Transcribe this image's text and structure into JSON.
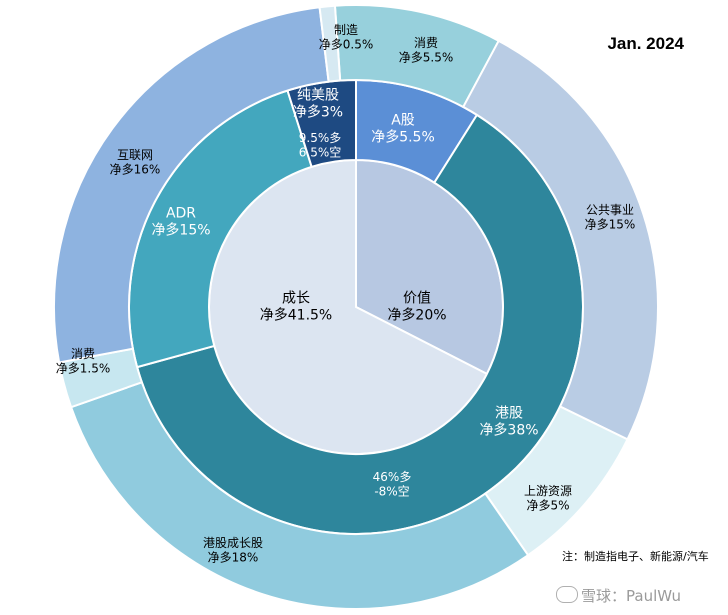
{
  "date": "Jan. 2024",
  "note": "注：制造指电子、新能源/汽车",
  "watermark": "雪球：PaulWu",
  "chart_data": {
    "type": "pie",
    "rings": [
      {
        "level": "inner",
        "slices": [
          {
            "name": "价值",
            "label": "净多20%",
            "value": 20,
            "color": "#b7c8e2"
          },
          {
            "name": "成长",
            "label": "净多41.5%",
            "value": 41.5,
            "color": "#dce5f1"
          }
        ]
      },
      {
        "level": "middle",
        "slices": [
          {
            "name": "A股",
            "label": "净多5.5%",
            "value": 5.5,
            "color": "#5b8fd6"
          },
          {
            "name": "港股",
            "label": "净多38%",
            "value": 38,
            "color": "#2e869c"
          },
          {
            "name": "ADR",
            "label": "净多15%",
            "value": 15,
            "color": "#43a7be"
          },
          {
            "name": "纯美股",
            "label": "净多3%",
            "value": 3,
            "color": "#1e4a82"
          }
        ],
        "annotations": [
          "46%多",
          "-8%空",
          "9.5%多",
          "6.5%空"
        ]
      },
      {
        "level": "outer",
        "slices": [
          {
            "name": "消费",
            "label": "净多5.5%",
            "value": 5.5,
            "color": "#97d0dc"
          },
          {
            "name": "公共事业",
            "label": "净多15%",
            "value": 15,
            "color": "#b9cce4"
          },
          {
            "name": "上游资源",
            "label": "净多5%",
            "value": 5,
            "color": "#ddf0f5"
          },
          {
            "name": "港股成长股",
            "label": "净多18%",
            "value": 18,
            "color": "#90cbde"
          },
          {
            "name": "消费",
            "label": "净多1.5%",
            "value": 1.5,
            "color": "#c7e7f0"
          },
          {
            "name": "互联网",
            "label": "净多16%",
            "value": 16,
            "color": "#8eb3e0"
          },
          {
            "name": "制造",
            "label": "净多0.5%",
            "value": 0.5,
            "color": "#d6e9f2"
          }
        ]
      }
    ]
  }
}
